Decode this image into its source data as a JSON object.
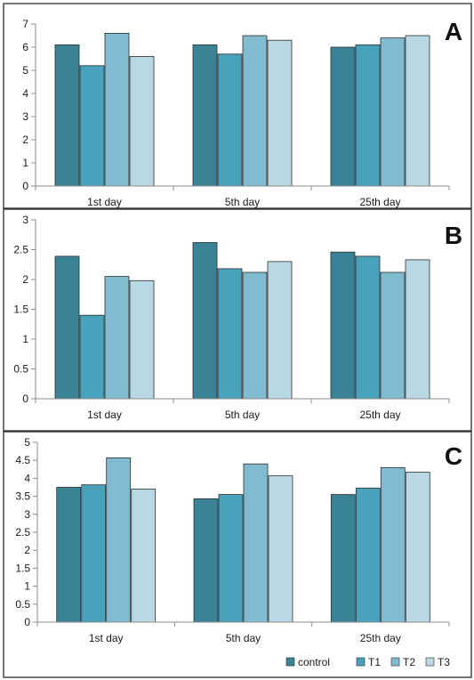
{
  "series_colors": [
    "#3a8296",
    "#48a2bc",
    "#80bbd0",
    "#b8d8e3"
  ],
  "legend": {
    "items": [
      {
        "label": "control"
      },
      {
        "label": "T1"
      },
      {
        "label": "T2"
      },
      {
        "label": "T3"
      }
    ]
  },
  "chart_data": [
    {
      "type": "bar",
      "panel_letter": "A",
      "categories": [
        "1st day",
        "5th day",
        "25th day"
      ],
      "ylim": [
        0,
        7
      ],
      "yticks": [
        0,
        1,
        2,
        3,
        4,
        5,
        6,
        7
      ],
      "ytick_labels": [
        "0",
        "1",
        "2",
        "3",
        "4",
        "5",
        "6",
        "7"
      ],
      "grid": false,
      "series": [
        {
          "name": "control",
          "values": [
            6.1,
            6.1,
            6.0
          ]
        },
        {
          "name": "T1",
          "values": [
            5.2,
            5.7,
            6.1
          ]
        },
        {
          "name": "T2",
          "values": [
            6.6,
            6.5,
            6.4
          ]
        },
        {
          "name": "T3",
          "values": [
            5.6,
            6.3,
            6.5
          ]
        }
      ]
    },
    {
      "type": "bar",
      "panel_letter": "B",
      "categories": [
        "1st day",
        "5th day",
        "25th day"
      ],
      "ylim": [
        0,
        3
      ],
      "yticks": [
        0,
        0.5,
        1,
        1.5,
        2,
        2.5,
        3
      ],
      "ytick_labels": [
        "0",
        "0.5",
        "1",
        "1.5",
        "2",
        "2.5",
        "3"
      ],
      "grid": false,
      "series": [
        {
          "name": "control",
          "values": [
            2.39,
            2.62,
            2.46
          ]
        },
        {
          "name": "T1",
          "values": [
            1.4,
            2.18,
            2.39
          ]
        },
        {
          "name": "T2",
          "values": [
            2.05,
            2.12,
            2.12
          ]
        },
        {
          "name": "T3",
          "values": [
            1.98,
            2.3,
            2.33
          ]
        }
      ]
    },
    {
      "type": "bar",
      "panel_letter": "C",
      "categories": [
        "1st day",
        "5th day",
        "25th day"
      ],
      "ylim": [
        0,
        5
      ],
      "yticks": [
        0,
        0.5,
        1,
        1.5,
        2,
        2.5,
        3,
        3.5,
        4,
        4.5,
        5
      ],
      "ytick_labels": [
        "0",
        "0.5",
        "1",
        "1.5",
        "2",
        "2.5",
        "3",
        "3.5",
        "4",
        "4.5",
        "5"
      ],
      "grid": false,
      "legend_position": "bottom-right",
      "series": [
        {
          "name": "control",
          "values": [
            3.75,
            3.43,
            3.55
          ]
        },
        {
          "name": "T1",
          "values": [
            3.82,
            3.55,
            3.73
          ]
        },
        {
          "name": "T2",
          "values": [
            4.57,
            4.4,
            4.3
          ]
        },
        {
          "name": "T3",
          "values": [
            3.7,
            4.07,
            4.17
          ]
        }
      ]
    }
  ]
}
